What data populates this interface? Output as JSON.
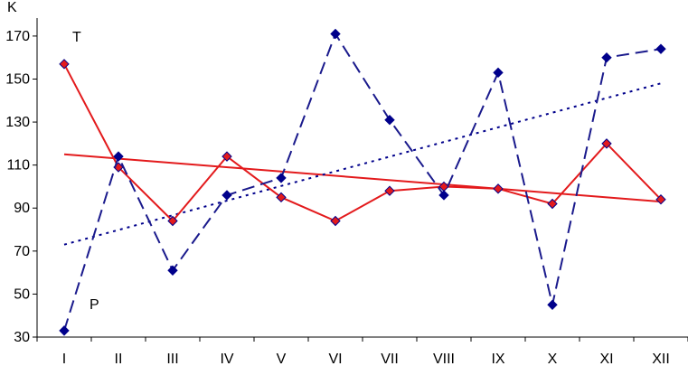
{
  "chart_data": {
    "type": "line",
    "categories": [
      "I",
      "II",
      "III",
      "IV",
      "V",
      "VI",
      "VII",
      "VIII",
      "IX",
      "X",
      "XI",
      "XII"
    ],
    "ylabel": "K",
    "ylim": [
      30,
      175
    ],
    "yticks": [
      30,
      50,
      70,
      90,
      110,
      130,
      150,
      170
    ],
    "grid": false,
    "legend": "none",
    "annotations": [
      "T",
      "P"
    ],
    "series": [
      {
        "values": [
          157,
          109,
          84,
          114,
          95,
          84,
          98,
          100,
          99,
          92,
          120,
          94
        ],
        "color": "#e31a1c",
        "marker_fill": "#e31a1c",
        "marker_edge": "#00008b",
        "line_style": "solid",
        "marker": "diamond"
      },
      {
        "values": [
          33,
          114,
          61,
          96,
          104,
          171,
          131,
          96,
          153,
          45,
          160,
          164
        ],
        "color": "#1a1a8c",
        "marker_fill": "#00008b",
        "marker_edge": "#00008b",
        "line_style": "dashed",
        "marker": "diamond"
      }
    ],
    "trendlines": [
      {
        "values": [
          115,
          93
        ],
        "color": "#e31a1c",
        "line_style": "solid"
      },
      {
        "values": [
          73,
          148
        ],
        "color": "#00008b",
        "line_style": "dotted"
      }
    ]
  }
}
